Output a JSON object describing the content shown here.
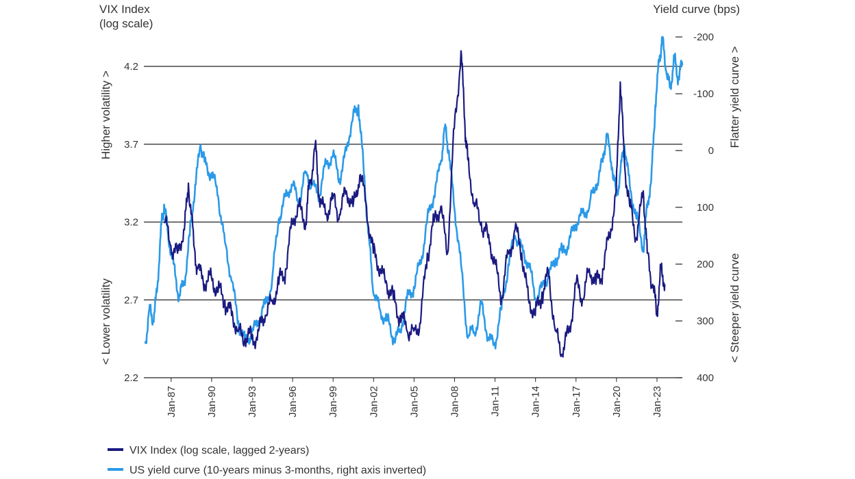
{
  "chart_data": {
    "type": "line",
    "left_axis": {
      "title_line1": "VIX Index",
      "title_line2": "(log scale)",
      "ticks": [
        "4.2",
        "3.7",
        "3.2",
        "2.7",
        "2.2"
      ],
      "tick_values": [
        4.2,
        3.7,
        3.2,
        2.7,
        2.2
      ],
      "range": [
        2.2,
        4.2
      ],
      "upper_label": "Higher volatility >",
      "lower_label": "< Lower volatility"
    },
    "right_axis": {
      "title": "Yield curve (bps)",
      "ticks": [
        "-200",
        "-100",
        "0",
        "100",
        "200",
        "300",
        "400"
      ],
      "tick_values": [
        -200,
        -100,
        0,
        100,
        200,
        300,
        400
      ],
      "range": [
        -200,
        400
      ],
      "inverted": true,
      "upper_label": "Flatter yield curve >",
      "lower_label": "< Steeper yield curve"
    },
    "x_ticks": [
      "Jan-87",
      "Jan-90",
      "Jan-93",
      "Jan-96",
      "Jan-99",
      "Jan-02",
      "Jan-05",
      "Jan-08",
      "Jan-11",
      "Jan-14",
      "Jan-17",
      "Jan-20",
      "Jan-23"
    ],
    "x_tick_years": [
      1987,
      1990,
      1993,
      1996,
      1999,
      2002,
      2005,
      2008,
      2011,
      2014,
      2017,
      2020,
      2023
    ],
    "x_range": [
      1985.0,
      2024.9
    ],
    "gridlines": [
      4.2,
      3.7,
      3.2,
      2.7
    ],
    "series": [
      {
        "name": "VIX Index (log scale, lagged 2-years)",
        "color": "#1a1a80",
        "axis": "left",
        "points": [
          [
            1986.5,
            3.2
          ],
          [
            1987.0,
            3.05
          ],
          [
            1987.5,
            3.0
          ],
          [
            1988.0,
            3.15
          ],
          [
            1988.3,
            3.45
          ],
          [
            1988.7,
            3.05
          ],
          [
            1989.0,
            2.9
          ],
          [
            1989.5,
            2.8
          ],
          [
            1990.0,
            2.85
          ],
          [
            1990.5,
            2.75
          ],
          [
            1991.0,
            2.7
          ],
          [
            1991.5,
            2.6
          ],
          [
            1992.0,
            2.5
          ],
          [
            1992.5,
            2.45
          ],
          [
            1993.0,
            2.45
          ],
          [
            1993.5,
            2.5
          ],
          [
            1994.0,
            2.6
          ],
          [
            1994.5,
            2.7
          ],
          [
            1995.0,
            2.8
          ],
          [
            1995.5,
            2.9
          ],
          [
            1996.0,
            3.2
          ],
          [
            1996.5,
            3.3
          ],
          [
            1997.0,
            3.2
          ],
          [
            1997.3,
            3.45
          ],
          [
            1997.7,
            3.7
          ],
          [
            1998.0,
            3.35
          ],
          [
            1998.5,
            3.25
          ],
          [
            1999.0,
            3.35
          ],
          [
            1999.5,
            3.25
          ],
          [
            2000.0,
            3.4
          ],
          [
            2000.5,
            3.3
          ],
          [
            2001.0,
            3.5
          ],
          [
            2001.5,
            3.3
          ],
          [
            2002.0,
            3.0
          ],
          [
            2002.5,
            2.9
          ],
          [
            2003.0,
            2.8
          ],
          [
            2003.5,
            2.7
          ],
          [
            2004.0,
            2.6
          ],
          [
            2004.5,
            2.5
          ],
          [
            2005.0,
            2.5
          ],
          [
            2005.5,
            2.55
          ],
          [
            2006.0,
            3.0
          ],
          [
            2006.5,
            3.2
          ],
          [
            2007.0,
            3.3
          ],
          [
            2007.5,
            3.0
          ],
          [
            2008.0,
            3.8
          ],
          [
            2008.5,
            4.3
          ],
          [
            2008.8,
            3.8
          ],
          [
            2009.0,
            3.6
          ],
          [
            2009.5,
            3.3
          ],
          [
            2010.0,
            3.2
          ],
          [
            2010.5,
            3.1
          ],
          [
            2011.0,
            2.95
          ],
          [
            2011.5,
            2.7
          ],
          [
            2012.0,
            3.0
          ],
          [
            2012.5,
            3.15
          ],
          [
            2013.0,
            3.0
          ],
          [
            2013.5,
            2.7
          ],
          [
            2014.0,
            2.6
          ],
          [
            2014.5,
            2.75
          ],
          [
            2015.0,
            2.85
          ],
          [
            2015.5,
            2.5
          ],
          [
            2016.0,
            2.35
          ],
          [
            2016.5,
            2.5
          ],
          [
            2017.0,
            2.8
          ],
          [
            2017.5,
            2.7
          ],
          [
            2018.0,
            2.9
          ],
          [
            2018.5,
            2.8
          ],
          [
            2019.0,
            2.9
          ],
          [
            2019.5,
            3.1
          ],
          [
            2020.0,
            3.4
          ],
          [
            2020.3,
            4.1
          ],
          [
            2020.6,
            3.6
          ],
          [
            2021.0,
            3.3
          ],
          [
            2021.5,
            3.1
          ],
          [
            2022.0,
            3.4
          ],
          [
            2022.3,
            3.0
          ],
          [
            2022.7,
            2.8
          ],
          [
            2023.0,
            2.6
          ],
          [
            2023.3,
            2.9
          ],
          [
            2023.6,
            2.8
          ]
        ]
      },
      {
        "name": "US yield curve (10-years minus 3-months, right axis inverted)",
        "color": "#2b9ae8",
        "axis": "right",
        "points": [
          [
            1985.1,
            340
          ],
          [
            1985.4,
            280
          ],
          [
            1985.7,
            300
          ],
          [
            1986.0,
            240
          ],
          [
            1986.3,
            130
          ],
          [
            1986.5,
            95
          ],
          [
            1986.8,
            150
          ],
          [
            1987.2,
            200
          ],
          [
            1987.6,
            260
          ],
          [
            1988.0,
            230
          ],
          [
            1988.4,
            150
          ],
          [
            1988.8,
            60
          ],
          [
            1989.2,
            -10
          ],
          [
            1989.5,
            20
          ],
          [
            1990.0,
            40
          ],
          [
            1990.5,
            80
          ],
          [
            1991.0,
            160
          ],
          [
            1991.5,
            230
          ],
          [
            1992.0,
            300
          ],
          [
            1992.5,
            340
          ],
          [
            1993.0,
            320
          ],
          [
            1993.5,
            300
          ],
          [
            1994.0,
            270
          ],
          [
            1994.5,
            230
          ],
          [
            1995.0,
            120
          ],
          [
            1995.5,
            80
          ],
          [
            1996.0,
            60
          ],
          [
            1996.5,
            90
          ],
          [
            1997.0,
            40
          ],
          [
            1997.5,
            60
          ],
          [
            1998.0,
            80
          ],
          [
            1998.5,
            20
          ],
          [
            1999.0,
            10
          ],
          [
            1999.5,
            50
          ],
          [
            2000.0,
            0
          ],
          [
            2000.5,
            -60
          ],
          [
            2000.9,
            -80
          ],
          [
            2001.3,
            40
          ],
          [
            2001.7,
            160
          ],
          [
            2002.0,
            250
          ],
          [
            2002.5,
            280
          ],
          [
            2003.0,
            300
          ],
          [
            2003.5,
            330
          ],
          [
            2004.0,
            320
          ],
          [
            2004.5,
            260
          ],
          [
            2005.0,
            240
          ],
          [
            2005.5,
            200
          ],
          [
            2006.0,
            120
          ],
          [
            2006.5,
            80
          ],
          [
            2007.0,
            20
          ],
          [
            2007.3,
            -40
          ],
          [
            2007.6,
            0
          ],
          [
            2008.0,
            100
          ],
          [
            2008.5,
            200
          ],
          [
            2009.0,
            330
          ],
          [
            2009.5,
            320
          ],
          [
            2010.0,
            270
          ],
          [
            2010.5,
            330
          ],
          [
            2011.0,
            340
          ],
          [
            2011.5,
            280
          ],
          [
            2012.0,
            200
          ],
          [
            2012.5,
            150
          ],
          [
            2013.0,
            170
          ],
          [
            2013.5,
            200
          ],
          [
            2014.0,
            260
          ],
          [
            2014.5,
            240
          ],
          [
            2015.0,
            220
          ],
          [
            2015.5,
            190
          ],
          [
            2016.0,
            180
          ],
          [
            2016.5,
            160
          ],
          [
            2017.0,
            130
          ],
          [
            2017.5,
            110
          ],
          [
            2018.0,
            100
          ],
          [
            2018.5,
            60
          ],
          [
            2019.0,
            20
          ],
          [
            2019.3,
            -30
          ],
          [
            2019.7,
            30
          ],
          [
            2020.0,
            80
          ],
          [
            2020.3,
            40
          ],
          [
            2020.6,
            -10
          ],
          [
            2021.0,
            60
          ],
          [
            2021.5,
            120
          ],
          [
            2022.0,
            170
          ],
          [
            2022.3,
            100
          ],
          [
            2022.6,
            50
          ],
          [
            2022.9,
            -80
          ],
          [
            2023.2,
            -160
          ],
          [
            2023.4,
            -200
          ],
          [
            2023.7,
            -140
          ],
          [
            2024.0,
            -110
          ],
          [
            2024.3,
            -160
          ],
          [
            2024.6,
            -130
          ],
          [
            2024.9,
            -150
          ]
        ]
      }
    ]
  },
  "legend": {
    "items": [
      {
        "label": "VIX Index (log scale, lagged 2-years)",
        "color": "#1a1a80"
      },
      {
        "label": "US yield curve (10-years minus 3-months, right axis inverted)",
        "color": "#2b9ae8"
      }
    ]
  }
}
